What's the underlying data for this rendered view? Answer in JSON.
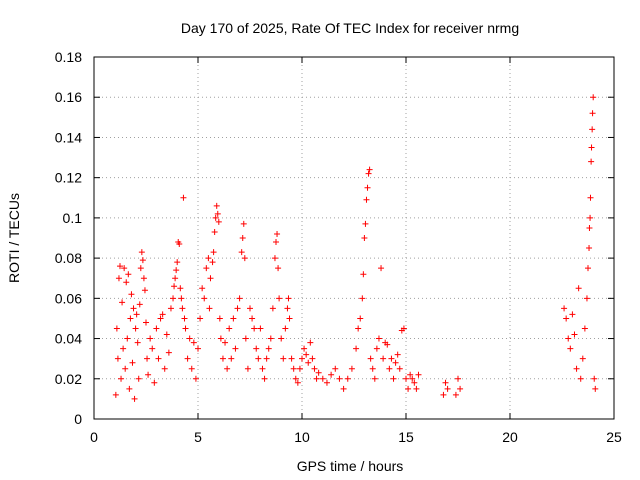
{
  "chart_data": {
    "type": "scatter",
    "title": "Day 170 of 2025, Rate Of TEC Index for receiver nrmg",
    "xlabel": "GPS time / hours",
    "ylabel": "ROTI / TECUs",
    "xlim": [
      0,
      25
    ],
    "ylim": [
      0,
      0.18
    ],
    "xticks": [
      0,
      5,
      10,
      15,
      20,
      25
    ],
    "xtick_labels": [
      "0",
      "5",
      "10",
      "15",
      "20",
      "25"
    ],
    "yticks": [
      0,
      0.02,
      0.04,
      0.06,
      0.08,
      0.1,
      0.12,
      0.14,
      0.16,
      0.18
    ],
    "ytick_labels": [
      "0",
      "0.02",
      "0.04",
      "0.06",
      "0.08",
      "0.1",
      "0.12",
      "0.14",
      "0.16",
      "0.18"
    ],
    "grid": true,
    "marker": "+",
    "color": "#ff0000",
    "series": [
      {
        "name": "ROTI",
        "points": [
          [
            1.05,
            0.012
          ],
          [
            1.1,
            0.045
          ],
          [
            1.15,
            0.03
          ],
          [
            1.2,
            0.07
          ],
          [
            1.25,
            0.076
          ],
          [
            1.3,
            0.02
          ],
          [
            1.35,
            0.058
          ],
          [
            1.4,
            0.035
          ],
          [
            1.45,
            0.075
          ],
          [
            1.5,
            0.025
          ],
          [
            1.55,
            0.068
          ],
          [
            1.6,
            0.04
          ],
          [
            1.65,
            0.072
          ],
          [
            1.7,
            0.015
          ],
          [
            1.75,
            0.05
          ],
          [
            1.8,
            0.062
          ],
          [
            1.85,
            0.028
          ],
          [
            1.9,
            0.055
          ],
          [
            1.95,
            0.01
          ],
          [
            2.0,
            0.045
          ],
          [
            2.05,
            0.052
          ],
          [
            2.1,
            0.038
          ],
          [
            2.15,
            0.02
          ],
          [
            2.2,
            0.057
          ],
          [
            2.25,
            0.075
          ],
          [
            2.3,
            0.083
          ],
          [
            2.35,
            0.079
          ],
          [
            2.4,
            0.07
          ],
          [
            2.45,
            0.064
          ],
          [
            2.5,
            0.048
          ],
          [
            2.55,
            0.03
          ],
          [
            2.6,
            0.022
          ],
          [
            2.7,
            0.04
          ],
          [
            2.8,
            0.035
          ],
          [
            2.9,
            0.018
          ],
          [
            3.0,
            0.045
          ],
          [
            3.1,
            0.03
          ],
          [
            3.2,
            0.05
          ],
          [
            3.3,
            0.052
          ],
          [
            3.4,
            0.025
          ],
          [
            3.5,
            0.042
          ],
          [
            3.6,
            0.033
          ],
          [
            3.7,
            0.055
          ],
          [
            3.8,
            0.06
          ],
          [
            3.85,
            0.066
          ],
          [
            3.9,
            0.07
          ],
          [
            3.95,
            0.074
          ],
          [
            4.0,
            0.078
          ],
          [
            4.05,
            0.088
          ],
          [
            4.1,
            0.087
          ],
          [
            4.15,
            0.065
          ],
          [
            4.2,
            0.06
          ],
          [
            4.25,
            0.055
          ],
          [
            4.3,
            0.11
          ],
          [
            4.35,
            0.05
          ],
          [
            4.4,
            0.045
          ],
          [
            4.5,
            0.03
          ],
          [
            4.6,
            0.04
          ],
          [
            4.7,
            0.025
          ],
          [
            4.8,
            0.038
          ],
          [
            4.9,
            0.02
          ],
          [
            5.0,
            0.035
          ],
          [
            5.1,
            0.05
          ],
          [
            5.2,
            0.065
          ],
          [
            5.3,
            0.06
          ],
          [
            5.4,
            0.075
          ],
          [
            5.5,
            0.08
          ],
          [
            5.55,
            0.055
          ],
          [
            5.6,
            0.07
          ],
          [
            5.7,
            0.078
          ],
          [
            5.75,
            0.083
          ],
          [
            5.8,
            0.093
          ],
          [
            5.85,
            0.1
          ],
          [
            5.9,
            0.106
          ],
          [
            5.95,
            0.102
          ],
          [
            6.0,
            0.098
          ],
          [
            6.05,
            0.05
          ],
          [
            6.1,
            0.04
          ],
          [
            6.2,
            0.03
          ],
          [
            6.3,
            0.038
          ],
          [
            6.4,
            0.025
          ],
          [
            6.5,
            0.045
          ],
          [
            6.6,
            0.03
          ],
          [
            6.7,
            0.05
          ],
          [
            6.8,
            0.035
          ],
          [
            6.9,
            0.055
          ],
          [
            7.0,
            0.06
          ],
          [
            7.1,
            0.083
          ],
          [
            7.15,
            0.09
          ],
          [
            7.2,
            0.097
          ],
          [
            7.25,
            0.08
          ],
          [
            7.3,
            0.04
          ],
          [
            7.4,
            0.025
          ],
          [
            7.5,
            0.055
          ],
          [
            7.6,
            0.05
          ],
          [
            7.7,
            0.045
          ],
          [
            7.8,
            0.035
          ],
          [
            7.9,
            0.03
          ],
          [
            8.0,
            0.045
          ],
          [
            8.1,
            0.025
          ],
          [
            8.2,
            0.02
          ],
          [
            8.3,
            0.03
          ],
          [
            8.4,
            0.035
          ],
          [
            8.5,
            0.04
          ],
          [
            8.6,
            0.055
          ],
          [
            8.7,
            0.08
          ],
          [
            8.75,
            0.088
          ],
          [
            8.8,
            0.092
          ],
          [
            8.85,
            0.075
          ],
          [
            8.9,
            0.06
          ],
          [
            9.0,
            0.04
          ],
          [
            9.1,
            0.03
          ],
          [
            9.2,
            0.045
          ],
          [
            9.3,
            0.055
          ],
          [
            9.35,
            0.06
          ],
          [
            9.4,
            0.05
          ],
          [
            9.5,
            0.03
          ],
          [
            9.6,
            0.025
          ],
          [
            9.7,
            0.02
          ],
          [
            9.8,
            0.018
          ],
          [
            9.9,
            0.025
          ],
          [
            10.0,
            0.03
          ],
          [
            10.1,
            0.035
          ],
          [
            10.2,
            0.032
          ],
          [
            10.3,
            0.028
          ],
          [
            10.4,
            0.038
          ],
          [
            10.5,
            0.03
          ],
          [
            10.6,
            0.025
          ],
          [
            10.7,
            0.02
          ],
          [
            10.8,
            0.023
          ],
          [
            11.0,
            0.02
          ],
          [
            11.2,
            0.018
          ],
          [
            11.4,
            0.022
          ],
          [
            11.6,
            0.025
          ],
          [
            11.8,
            0.02
          ],
          [
            12.0,
            0.015
          ],
          [
            12.2,
            0.02
          ],
          [
            12.4,
            0.025
          ],
          [
            12.6,
            0.035
          ],
          [
            12.7,
            0.045
          ],
          [
            12.8,
            0.05
          ],
          [
            12.9,
            0.06
          ],
          [
            12.95,
            0.072
          ],
          [
            13.0,
            0.09
          ],
          [
            13.05,
            0.097
          ],
          [
            13.1,
            0.109
          ],
          [
            13.15,
            0.115
          ],
          [
            13.2,
            0.122
          ],
          [
            13.25,
            0.124
          ],
          [
            13.3,
            0.03
          ],
          [
            13.4,
            0.025
          ],
          [
            13.5,
            0.02
          ],
          [
            13.6,
            0.035
          ],
          [
            13.7,
            0.04
          ],
          [
            13.8,
            0.075
          ],
          [
            13.9,
            0.03
          ],
          [
            14.0,
            0.038
          ],
          [
            14.1,
            0.037
          ],
          [
            14.2,
            0.025
          ],
          [
            14.3,
            0.03
          ],
          [
            14.4,
            0.02
          ],
          [
            14.5,
            0.028
          ],
          [
            14.6,
            0.032
          ],
          [
            14.7,
            0.025
          ],
          [
            14.8,
            0.044
          ],
          [
            14.9,
            0.045
          ],
          [
            15.0,
            0.02
          ],
          [
            15.1,
            0.015
          ],
          [
            15.2,
            0.022
          ],
          [
            15.3,
            0.02
          ],
          [
            15.4,
            0.018
          ],
          [
            15.5,
            0.015
          ],
          [
            15.6,
            0.022
          ],
          [
            16.8,
            0.012
          ],
          [
            16.9,
            0.018
          ],
          [
            17.0,
            0.015
          ],
          [
            17.4,
            0.012
          ],
          [
            17.5,
            0.02
          ],
          [
            17.6,
            0.015
          ],
          [
            22.6,
            0.055
          ],
          [
            22.7,
            0.05
          ],
          [
            22.8,
            0.04
          ],
          [
            22.9,
            0.035
          ],
          [
            23.0,
            0.052
          ],
          [
            23.1,
            0.042
          ],
          [
            23.2,
            0.025
          ],
          [
            23.3,
            0.065
          ],
          [
            23.4,
            0.02
          ],
          [
            23.5,
            0.03
          ],
          [
            23.6,
            0.045
          ],
          [
            23.7,
            0.06
          ],
          [
            23.75,
            0.075
          ],
          [
            23.8,
            0.085
          ],
          [
            23.82,
            0.095
          ],
          [
            23.85,
            0.1
          ],
          [
            23.87,
            0.11
          ],
          [
            23.9,
            0.128
          ],
          [
            23.92,
            0.135
          ],
          [
            23.95,
            0.144
          ],
          [
            23.97,
            0.152
          ],
          [
            24.0,
            0.16
          ],
          [
            24.05,
            0.02
          ],
          [
            24.1,
            0.015
          ]
        ]
      }
    ]
  }
}
